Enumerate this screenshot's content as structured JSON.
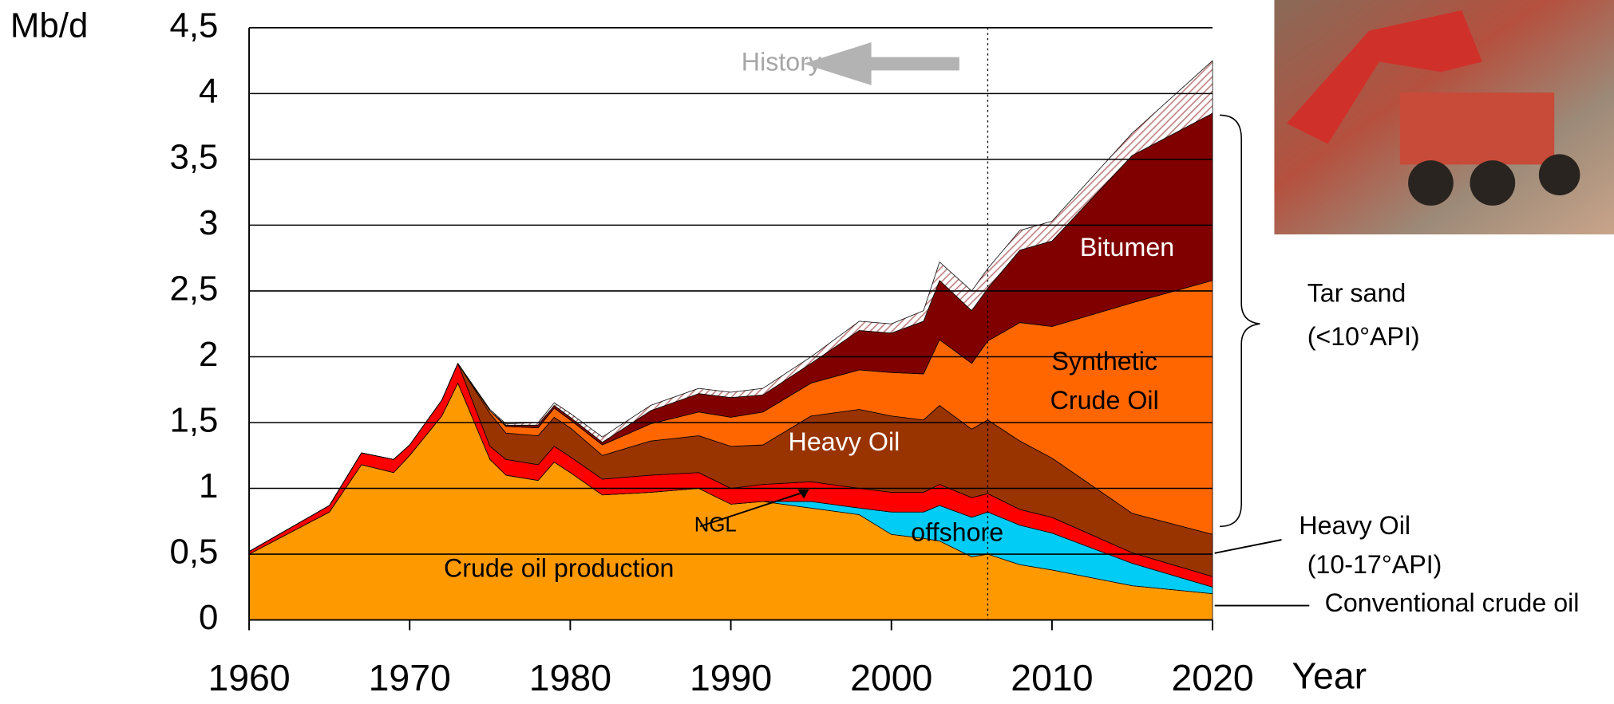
{
  "chart_data": {
    "type": "stacked_area",
    "y_label": "Mb/d",
    "x_label": "Year",
    "x": [
      1960,
      1965,
      1967,
      1969,
      1970,
      1972,
      1973,
      1975,
      1976,
      1978,
      1979,
      1980,
      1982,
      1985,
      1988,
      1990,
      1992,
      1995,
      1998,
      2000,
      2002,
      2003,
      2005,
      2006,
      2008,
      2010,
      2015,
      2020
    ],
    "series": [
      {
        "name": "Crude oil production",
        "color": "#ff9900",
        "values": [
          0.5,
          0.82,
          1.18,
          1.12,
          1.25,
          1.55,
          1.8,
          1.22,
          1.1,
          1.06,
          1.2,
          1.12,
          0.95,
          0.97,
          1.0,
          0.88,
          0.9,
          0.85,
          0.8,
          0.65,
          0.62,
          0.6,
          0.48,
          0.5,
          0.42,
          0.38,
          0.26,
          0.2
        ]
      },
      {
        "name": "offshore",
        "color": "#00ccf5",
        "values": [
          0,
          0,
          0,
          0,
          0,
          0,
          0,
          0,
          0,
          0,
          0,
          0,
          0,
          0,
          0,
          0,
          0,
          0.05,
          0.05,
          0.17,
          0.2,
          0.27,
          0.3,
          0.32,
          0.3,
          0.28,
          0.17,
          0.05
        ]
      },
      {
        "name": "NGL",
        "color": "#ff0000",
        "values": [
          0.02,
          0.05,
          0.09,
          0.1,
          0.08,
          0.12,
          0.15,
          0.1,
          0.12,
          0.12,
          0.12,
          0.12,
          0.12,
          0.13,
          0.12,
          0.12,
          0.13,
          0.15,
          0.15,
          0.15,
          0.15,
          0.16,
          0.15,
          0.14,
          0.12,
          0.12,
          0.08,
          0.08
        ]
      },
      {
        "name": "Heavy Oil",
        "color": "#993300",
        "values": [
          0,
          0,
          0,
          0,
          0,
          0,
          0,
          0.25,
          0.2,
          0.22,
          0.22,
          0.22,
          0.18,
          0.26,
          0.28,
          0.32,
          0.3,
          0.5,
          0.6,
          0.58,
          0.55,
          0.6,
          0.52,
          0.56,
          0.52,
          0.45,
          0.3,
          0.32
        ]
      },
      {
        "name": "Synthetic Crude Oil",
        "color": "#ff6600",
        "values": [
          0,
          0,
          0,
          0,
          0,
          0,
          0,
          0.02,
          0.05,
          0.06,
          0.07,
          0.06,
          0.08,
          0.13,
          0.18,
          0.22,
          0.25,
          0.25,
          0.3,
          0.33,
          0.35,
          0.5,
          0.5,
          0.6,
          0.9,
          1.0,
          1.6,
          1.93
        ]
      },
      {
        "name": "Bitumen",
        "color": "#800000",
        "values": [
          0,
          0,
          0,
          0,
          0,
          0,
          0,
          0,
          0.01,
          0.02,
          0.02,
          0.02,
          0.02,
          0.1,
          0.14,
          0.15,
          0.13,
          0.15,
          0.3,
          0.3,
          0.4,
          0.45,
          0.4,
          0.4,
          0.55,
          0.65,
          1.12,
          1.27
        ]
      },
      {
        "color": "#c08080",
        "hatch": true,
        "values": [
          0,
          0,
          0,
          0,
          0,
          0,
          0,
          0.01,
          0.01,
          0.02,
          0.02,
          0.03,
          0.04,
          0.04,
          0.04,
          0.04,
          0.05,
          0.05,
          0.07,
          0.07,
          0.08,
          0.14,
          0.15,
          0.15,
          0.15,
          0.15,
          0.17,
          0.4
        ]
      }
    ],
    "xlim": [
      1960,
      2020
    ],
    "xticks": [
      1960,
      1970,
      1980,
      1990,
      2000,
      2010,
      2020
    ],
    "ylim": [
      0,
      4.5
    ],
    "yticks": [
      0,
      {
        "value": 0.5,
        "label": "0,5"
      },
      1,
      {
        "value": 1.5,
        "label": "1,5"
      },
      2,
      {
        "value": 2.5,
        "label": "2,5"
      },
      3,
      {
        "value": 3.5,
        "label": "3,5"
      },
      4,
      {
        "value": 4.5,
        "label": "4,5"
      }
    ],
    "grid": true,
    "divider": 2006,
    "history_label": "History",
    "annotations": {
      "tar_sand": [
        "Tar sand",
        "(<10°API)"
      ],
      "heavy_oil": [
        "Heavy Oil",
        "(10-17°API)"
      ],
      "conventional": "Conventional crude oil"
    }
  }
}
